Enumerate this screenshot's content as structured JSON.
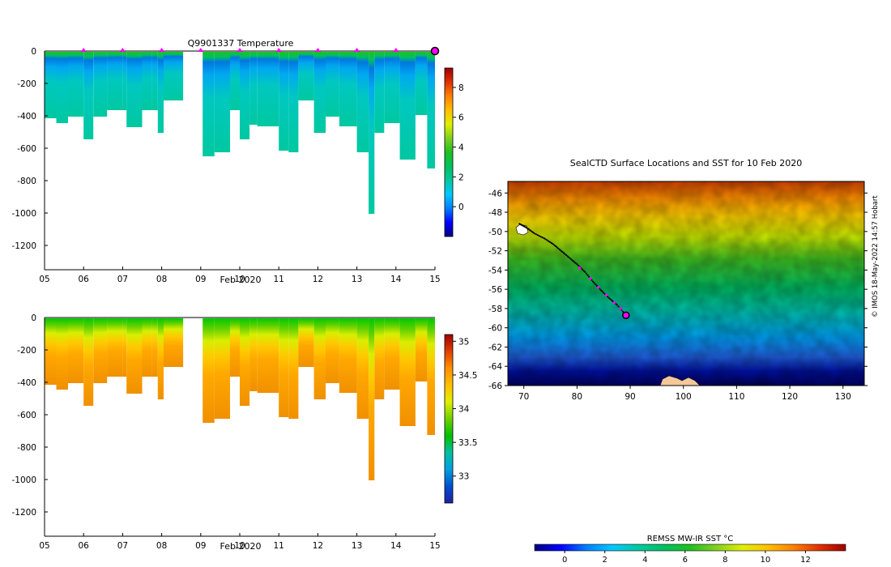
{
  "colors": {
    "jet": [
      "#000080",
      "#0000ff",
      "#0080ff",
      "#00c8ff",
      "#00c8a0",
      "#00c060",
      "#20c020",
      "#80d020",
      "#e0f000",
      "#ffc000",
      "#ff8000",
      "#e03000",
      "#a00000"
    ],
    "salinity": [
      "#2020a0",
      "#0050d0",
      "#00a0e0",
      "#00c0a0",
      "#00c000",
      "#70d000",
      "#e0f000",
      "#ffc000",
      "#ff9000",
      "#e04000",
      "#a00000"
    ],
    "marker": "#ff00ff",
    "track": "#000000",
    "land": "#f5c89a"
  },
  "chart_data": [
    {
      "type": "heatmap",
      "title": "Q9901337  Temperature",
      "xlabel": "Feb 2020",
      "ylabel": "",
      "xlim": [
        5,
        15
      ],
      "ylim": [
        -1350,
        0
      ],
      "x_ticks": [
        "05",
        "06",
        "07",
        "08",
        "09",
        "10",
        "11",
        "12",
        "13",
        "14",
        "15"
      ],
      "y_ticks": [
        "0",
        "-200",
        "-400",
        "-600",
        "-800",
        "-1000",
        "-1200"
      ],
      "y_tick_values": [
        0,
        -200,
        -400,
        -600,
        -800,
        -1000,
        -1200
      ],
      "colorbar": {
        "min": -2,
        "max": 9.3,
        "ticks": [
          "0",
          "2",
          "4",
          "6",
          "8"
        ],
        "tick_values": [
          0,
          2,
          4,
          6,
          8
        ]
      },
      "marker_days": [
        6,
        7,
        8,
        9,
        10,
        11,
        12,
        13,
        14
      ],
      "end_marker_day": 15,
      "profiles": [
        {
          "day": 5.0,
          "depth": 410
        },
        {
          "day": 5.3,
          "depth": 440
        },
        {
          "day": 5.6,
          "depth": 400
        },
        {
          "day": 6.0,
          "depth": 540
        },
        {
          "day": 6.25,
          "depth": 400
        },
        {
          "day": 6.6,
          "depth": 360
        },
        {
          "day": 7.0,
          "depth": 360
        },
        {
          "day": 7.1,
          "depth": 465
        },
        {
          "day": 7.5,
          "depth": 360
        },
        {
          "day": 7.75,
          "depth": 360
        },
        {
          "day": 7.9,
          "depth": 500
        },
        {
          "day": 8.05,
          "depth": 300
        },
        {
          "day": 9.05,
          "depth": 645
        },
        {
          "day": 9.35,
          "depth": 620
        },
        {
          "day": 9.75,
          "depth": 360
        },
        {
          "day": 10.0,
          "depth": 540
        },
        {
          "day": 10.25,
          "depth": 450
        },
        {
          "day": 10.45,
          "depth": 460
        },
        {
          "day": 11.0,
          "depth": 610
        },
        {
          "day": 11.25,
          "depth": 620
        },
        {
          "day": 11.5,
          "depth": 300
        },
        {
          "day": 11.9,
          "depth": 500
        },
        {
          "day": 12.2,
          "depth": 400
        },
        {
          "day": 12.55,
          "depth": 460
        },
        {
          "day": 13.0,
          "depth": 620
        },
        {
          "day": 13.3,
          "depth": 1000
        },
        {
          "day": 13.45,
          "depth": 500
        },
        {
          "day": 13.7,
          "depth": 440
        },
        {
          "day": 14.1,
          "depth": 665
        },
        {
          "day": 14.5,
          "depth": 390
        },
        {
          "day": 14.8,
          "depth": 720
        }
      ],
      "gap": [
        8.55,
        9.05
      ]
    },
    {
      "type": "heatmap",
      "title": "",
      "xlabel": "Feb 2020",
      "xlim": [
        5,
        15
      ],
      "ylim": [
        -1350,
        0
      ],
      "x_ticks": [
        "05",
        "06",
        "07",
        "08",
        "09",
        "10",
        "11",
        "12",
        "13",
        "14",
        "15"
      ],
      "y_ticks": [
        "0",
        "-200",
        "-400",
        "-600",
        "-800",
        "-1000",
        "-1200"
      ],
      "y_tick_values": [
        0,
        -200,
        -400,
        -600,
        -800,
        -1000,
        -1200
      ],
      "colorbar": {
        "min": 32.6,
        "max": 35.1,
        "ticks": [
          "33",
          "33.5",
          "34",
          "34.5",
          "35"
        ],
        "tick_values": [
          33,
          33.5,
          34,
          34.5,
          35
        ]
      }
    },
    {
      "type": "scatter",
      "title": "SealCTD Surface Locations and SST for 10 Feb 2020",
      "xlim": [
        67,
        134
      ],
      "ylim": [
        -66,
        -44.8
      ],
      "x_ticks": [
        "70",
        "80",
        "90",
        "100",
        "110",
        "120",
        "130"
      ],
      "x_tick_values": [
        70,
        80,
        90,
        100,
        110,
        120,
        130
      ],
      "y_ticks": [
        "-46",
        "-48",
        "-50",
        "-52",
        "-54",
        "-56",
        "-58",
        "-60",
        "-62",
        "-64",
        "-66"
      ],
      "y_tick_values": [
        -46,
        -48,
        -50,
        -52,
        -54,
        -56,
        -58,
        -60,
        -62,
        -64,
        -66
      ],
      "track": [
        {
          "lon": 69.2,
          "lat": -49.2
        },
        {
          "lon": 70.5,
          "lat": -49.6
        },
        {
          "lon": 72.0,
          "lat": -50.2
        },
        {
          "lon": 73.8,
          "lat": -50.7
        },
        {
          "lon": 75.5,
          "lat": -51.3
        },
        {
          "lon": 77.0,
          "lat": -52.0
        },
        {
          "lon": 78.5,
          "lat": -52.7
        },
        {
          "lon": 80.0,
          "lat": -53.4
        },
        {
          "lon": 81.5,
          "lat": -54.2
        },
        {
          "lon": 83.0,
          "lat": -55.2
        },
        {
          "lon": 84.5,
          "lat": -56.1
        },
        {
          "lon": 86.0,
          "lat": -56.9
        },
        {
          "lon": 87.5,
          "lat": -57.6
        },
        {
          "lon": 89.2,
          "lat": -58.7
        }
      ],
      "highlight_points": [
        {
          "lon": 80.5,
          "lat": -53.8
        },
        {
          "lon": 82.5,
          "lat": -54.9
        },
        {
          "lon": 84.0,
          "lat": -55.8
        },
        {
          "lon": 85.5,
          "lat": -56.6
        },
        {
          "lon": 87.0,
          "lat": -57.4
        },
        {
          "lon": 88.2,
          "lat": -58.0
        }
      ],
      "end_point": {
        "lon": 89.2,
        "lat": -58.7
      }
    }
  ],
  "sst_colorbar": {
    "label": "REMSS MW-IR SST °C",
    "ticks": [
      "0",
      "2",
      "4",
      "6",
      "8",
      "10",
      "12"
    ],
    "tick_values": [
      0,
      2,
      4,
      6,
      8,
      10,
      12
    ],
    "min": -1.5,
    "max": 14
  },
  "credit": "© IMOS 18-May-2022 14:57 Hobart"
}
